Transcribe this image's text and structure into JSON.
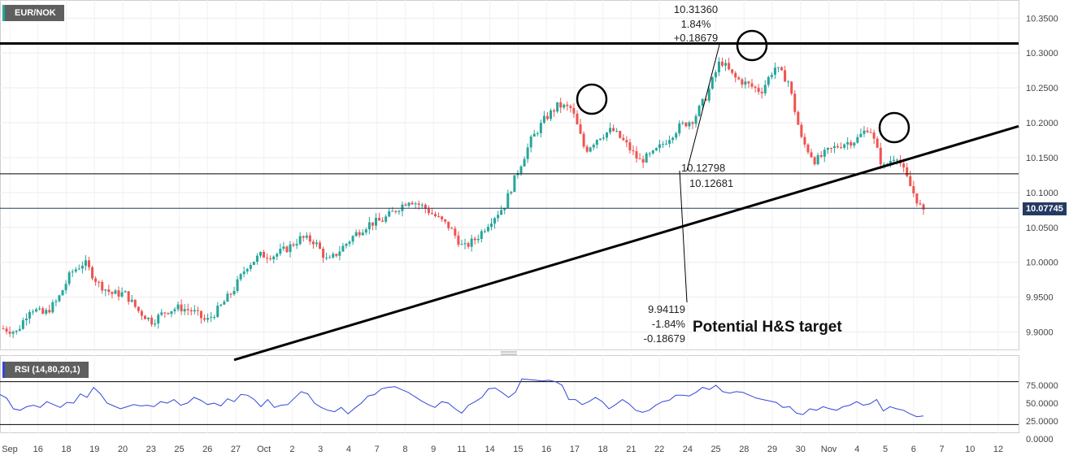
{
  "symbol": "EUR/NOK",
  "last_price": "10.07745",
  "rsi_label": "RSI (14,80,20,1)",
  "colors": {
    "up": "#26a69a",
    "down": "#ef5350",
    "rsi": "#3248d8",
    "last": "#253a63"
  },
  "chart_data": [
    {
      "type": "candlestick",
      "title": "EUR/NOK",
      "x_ticks": [
        "Sep",
        "16",
        "18",
        "19",
        "20",
        "23",
        "25",
        "26",
        "27",
        "Oct",
        "2",
        "3",
        "4",
        "7",
        "8",
        "9",
        "11",
        "14",
        "15",
        "16",
        "17",
        "18",
        "21",
        "22",
        "24",
        "25",
        "28",
        "29",
        "30",
        "Nov",
        "4",
        "5",
        "6",
        "7",
        "10",
        "12"
      ],
      "y_ticks": [
        "10.3500",
        "10.3000",
        "10.2500",
        "10.2000",
        "10.1500",
        "10.1000",
        "10.0500",
        "10.0000",
        "9.9500",
        "9.9000"
      ],
      "ylim": [
        9.875,
        10.376
      ],
      "close_path": [
        9.905,
        9.9,
        9.935,
        9.925,
        9.945,
        9.985,
        10.0,
        9.97,
        9.955,
        9.955,
        9.93,
        9.915,
        9.93,
        9.935,
        9.93,
        9.915,
        9.935,
        9.96,
        9.995,
        10.01,
        10.01,
        10.02,
        10.035,
        10.03,
        10.0,
        10.02,
        10.04,
        10.055,
        10.06,
        10.075,
        10.09,
        10.08,
        10.065,
        10.05,
        10.02,
        10.035,
        10.06,
        10.08,
        10.13,
        10.175,
        10.205,
        10.225,
        10.22,
        10.16,
        10.18,
        10.19,
        10.17,
        10.145,
        10.155,
        10.175,
        10.195,
        10.205,
        10.24,
        10.29,
        10.265,
        10.255,
        10.245,
        10.28,
        10.26,
        10.175,
        10.145,
        10.16,
        10.17,
        10.175,
        10.195,
        10.135,
        10.155,
        10.11,
        10.07
      ],
      "hlines": [
        10.3136,
        10.1268,
        10.07745
      ],
      "trendline": [
        [
          9.86,
          10.195
        ]
      ],
      "annotations": [
        {
          "text": "10.31360"
        },
        {
          "text": "1.84%"
        },
        {
          "text": "+0.18679"
        },
        {
          "text": "10.12798"
        },
        {
          "text": "10.12681"
        },
        {
          "text": "9.94119"
        },
        {
          "text": "-1.84%"
        },
        {
          "text": "-0.18679"
        },
        {
          "text": "Potential H&S target"
        }
      ]
    },
    {
      "type": "line",
      "title": "RSI (14,80,20,1)",
      "y_ticks": [
        "75.0000",
        "50.0000",
        "25.0000",
        "0.0000"
      ],
      "ylim": [
        0,
        100
      ],
      "levels": [
        80,
        20
      ],
      "values": [
        62,
        57,
        42,
        40,
        45,
        47,
        44,
        52,
        48,
        44,
        51,
        50,
        63,
        58,
        72,
        63,
        50,
        46,
        42,
        45,
        48,
        46,
        47,
        45,
        52,
        50,
        55,
        47,
        50,
        58,
        54,
        48,
        50,
        46,
        56,
        52,
        62,
        61,
        55,
        45,
        55,
        44,
        47,
        48,
        57,
        66,
        63,
        50,
        44,
        40,
        38,
        44,
        35,
        43,
        50,
        60,
        62,
        70,
        72,
        73,
        69,
        65,
        59,
        53,
        48,
        44,
        52,
        50,
        42,
        36,
        47,
        52,
        58,
        70,
        71,
        65,
        58,
        65,
        84,
        83,
        82,
        81,
        82,
        80,
        75,
        55,
        55,
        48,
        52,
        58,
        52,
        42,
        48,
        55,
        49,
        40,
        37,
        40,
        47,
        52,
        54,
        61,
        61,
        60,
        65,
        72,
        69,
        75,
        66,
        64,
        66,
        65,
        61,
        57,
        55,
        53,
        51,
        44,
        45,
        36,
        34,
        42,
        40,
        45,
        42,
        40,
        45,
        47,
        52,
        47,
        49,
        55,
        39,
        45,
        42,
        40,
        35,
        31,
        32
      ]
    }
  ]
}
